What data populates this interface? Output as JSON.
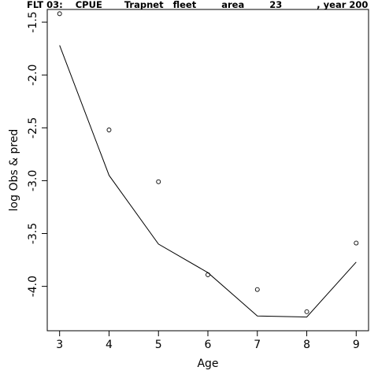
{
  "chart_data": {
    "type": "line",
    "title": "FLT 03:    CPUE       Trapnet   fleet        area        23           , year 200",
    "xlabel": "Age",
    "ylabel": "log Obs & pred",
    "x_ticks": [
      "3",
      "4",
      "5",
      "6",
      "7",
      "8",
      "9"
    ],
    "y_ticks": [
      "-1.5",
      "-2.0",
      "-2.5",
      "-3.0",
      "-3.5",
      "-4.0"
    ],
    "xlim": [
      2.75,
      9.25
    ],
    "ylim": [
      -4.42,
      -1.38
    ],
    "grid": false,
    "series": [
      {
        "kind": "points",
        "x": [
          3,
          4,
          5,
          6,
          7,
          8,
          9
        ],
        "y": [
          -1.42,
          -2.52,
          -3.01,
          -3.89,
          -4.03,
          -4.24,
          -3.59
        ]
      },
      {
        "kind": "line",
        "x": [
          3,
          4,
          5,
          6,
          7,
          8,
          9
        ],
        "y": [
          -1.72,
          -2.95,
          -3.6,
          -3.87,
          -4.28,
          -4.29,
          -3.77
        ]
      }
    ]
  }
}
